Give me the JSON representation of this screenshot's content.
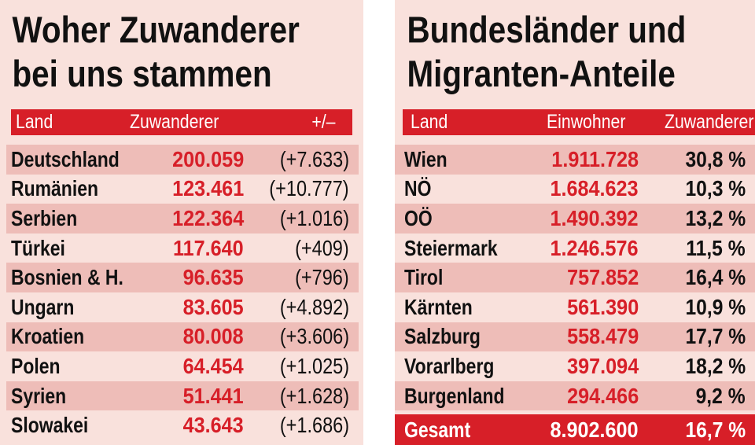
{
  "left": {
    "title_line1": "Woher Zuwanderer",
    "title_line2": "bei uns stammen",
    "headers": {
      "land": "Land",
      "zuwanderer": "Zuwanderer",
      "change": "+/–"
    },
    "rows": [
      {
        "land": "Deutschland",
        "zuwanderer": "200.059",
        "change": "(+7.633)"
      },
      {
        "land": "Rumänien",
        "zuwanderer": "123.461",
        "change": "(+10.777)"
      },
      {
        "land": "Serbien",
        "zuwanderer": "122.364",
        "change": "(+1.016)"
      },
      {
        "land": "Türkei",
        "zuwanderer": "117.640",
        "change": "(+409)"
      },
      {
        "land": "Bosnien & H.",
        "zuwanderer": "96.635",
        "change": "(+796)"
      },
      {
        "land": "Ungarn",
        "zuwanderer": "83.605",
        "change": "(+4.892)"
      },
      {
        "land": "Kroatien",
        "zuwanderer": "80.008",
        "change": "(+3.606)"
      },
      {
        "land": "Polen",
        "zuwanderer": "64.454",
        "change": "(+1.025)"
      },
      {
        "land": "Syrien",
        "zuwanderer": "51.441",
        "change": "(+1.628)"
      },
      {
        "land": "Slowakei",
        "zuwanderer": "43.643",
        "change": "(+1.686)"
      }
    ]
  },
  "right": {
    "title_line1": "Bundesländer und",
    "title_line2": "Migranten-Anteile",
    "headers": {
      "land": "Land",
      "einwohner": "Einwohner",
      "zuwanderer": "Zuwanderer"
    },
    "rows": [
      {
        "land": "Wien",
        "einwohner": "1.911.728",
        "anteil": "30,8 %"
      },
      {
        "land": "NÖ",
        "einwohner": "1.684.623",
        "anteil": "10,3 %"
      },
      {
        "land": "OÖ",
        "einwohner": "1.490.392",
        "anteil": "13,2 %"
      },
      {
        "land": "Steiermark",
        "einwohner": "1.246.576",
        "anteil": "11,5 %"
      },
      {
        "land": "Tirol",
        "einwohner": "757.852",
        "anteil": "16,4 %"
      },
      {
        "land": "Kärnten",
        "einwohner": "561.390",
        "anteil": "10,9 %"
      },
      {
        "land": "Salzburg",
        "einwohner": "558.479",
        "anteil": "17,7 %"
      },
      {
        "land": "Vorarlberg",
        "einwohner": "397.094",
        "anteil": "18,2 %"
      },
      {
        "land": "Burgenland",
        "einwohner": "294.466",
        "anteil": "9,2 %"
      }
    ],
    "total": {
      "land": "Gesamt",
      "einwohner": "8.902.600",
      "anteil": "16,7 %"
    }
  },
  "colors": {
    "accent_red": "#d71f28",
    "panel_bg": "#f9e1dc",
    "row_shade": "#eebdb8"
  }
}
